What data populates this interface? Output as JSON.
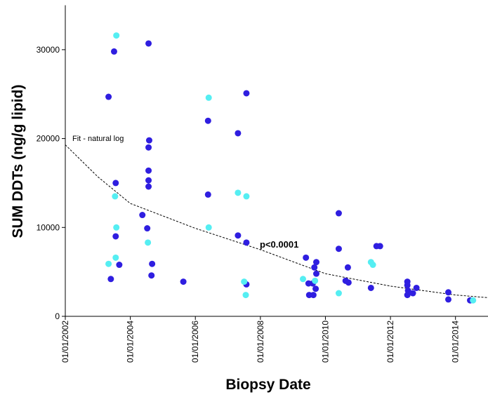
{
  "chart_data": {
    "type": "scatter",
    "x_label": "Biopsy Date",
    "y_label": "SUM DDTs (ng/g lipid)",
    "xlim": [
      2002,
      2015
    ],
    "ylim": [
      0,
      35000
    ],
    "xticks": [
      {
        "value": 2002,
        "label": "01/01/2002"
      },
      {
        "value": 2004,
        "label": "01/01/2004"
      },
      {
        "value": 2006,
        "label": "01/01/2006"
      },
      {
        "value": 2008,
        "label": "01/01/2008"
      },
      {
        "value": 2010,
        "label": "01/01/2010"
      },
      {
        "value": 2012,
        "label": "01/01/2012"
      },
      {
        "value": 2014,
        "label": "01/01/2014"
      }
    ],
    "yticks": [
      0,
      10000,
      20000,
      30000
    ],
    "series": [
      {
        "color": "#2f1ee0",
        "x": [
          2003.33,
          2003.5,
          2003.55,
          2003.55,
          2003.66,
          2003.4,
          2004.56,
          2004.58,
          2004.56,
          2004.56,
          2004.56,
          2004.56,
          2004.37,
          2004.52,
          2004.67,
          2004.65,
          2005.63,
          2006.39,
          2006.39,
          2007.31,
          2007.57,
          2007.31,
          2007.57,
          2007.57,
          2009.4,
          2009.72,
          2009.66,
          2009.72,
          2009.48,
          2009.61,
          2009.5,
          2009.63,
          2009.7,
          2010.41,
          2010.41,
          2010.69,
          2010.62,
          2010.71,
          2011.4,
          2011.57,
          2011.68,
          2012.52,
          2012.52,
          2012.54,
          2012.52,
          2012.69,
          2012.8,
          2013.78,
          2013.78,
          2014.45
        ],
        "values": [
          24700,
          29800,
          15000,
          9000,
          5800,
          4200,
          30700,
          19800,
          19000,
          16400,
          15300,
          14600,
          11400,
          9900,
          5900,
          4600,
          3900,
          22000,
          13700,
          20600,
          25100,
          9100,
          8300,
          3600,
          6600,
          6100,
          5500,
          4800,
          3700,
          3700,
          2400,
          2400,
          3100,
          11600,
          7600,
          5500,
          4000,
          3800,
          3200,
          7900,
          7900,
          3900,
          3500,
          2900,
          2400,
          2600,
          3200,
          2700,
          1900,
          1800
        ]
      },
      {
        "color": "#55eef2",
        "x": [
          2003.57,
          2003.53,
          2003.57,
          2003.55,
          2003.33,
          2004.54,
          2006.41,
          2006.41,
          2007.31,
          2007.57,
          2007.5,
          2007.55,
          2009.31,
          2009.68,
          2010.41,
          2011.4,
          2011.46,
          2014.54
        ],
        "values": [
          31600,
          13500,
          10000,
          6600,
          5900,
          8300,
          24600,
          10000,
          13900,
          13500,
          3900,
          2400,
          4200,
          4000,
          2600,
          6100,
          5800,
          1800
        ]
      }
    ],
    "fit": {
      "label": "Fit - natural log",
      "p_label": "p<0.0001",
      "x": [
        2002,
        2003,
        2004,
        2006,
        2008,
        2010,
        2012,
        2014,
        2015
      ],
      "values": [
        19300,
        15700,
        12700,
        9900,
        7500,
        4800,
        3400,
        2400,
        2100
      ]
    }
  }
}
